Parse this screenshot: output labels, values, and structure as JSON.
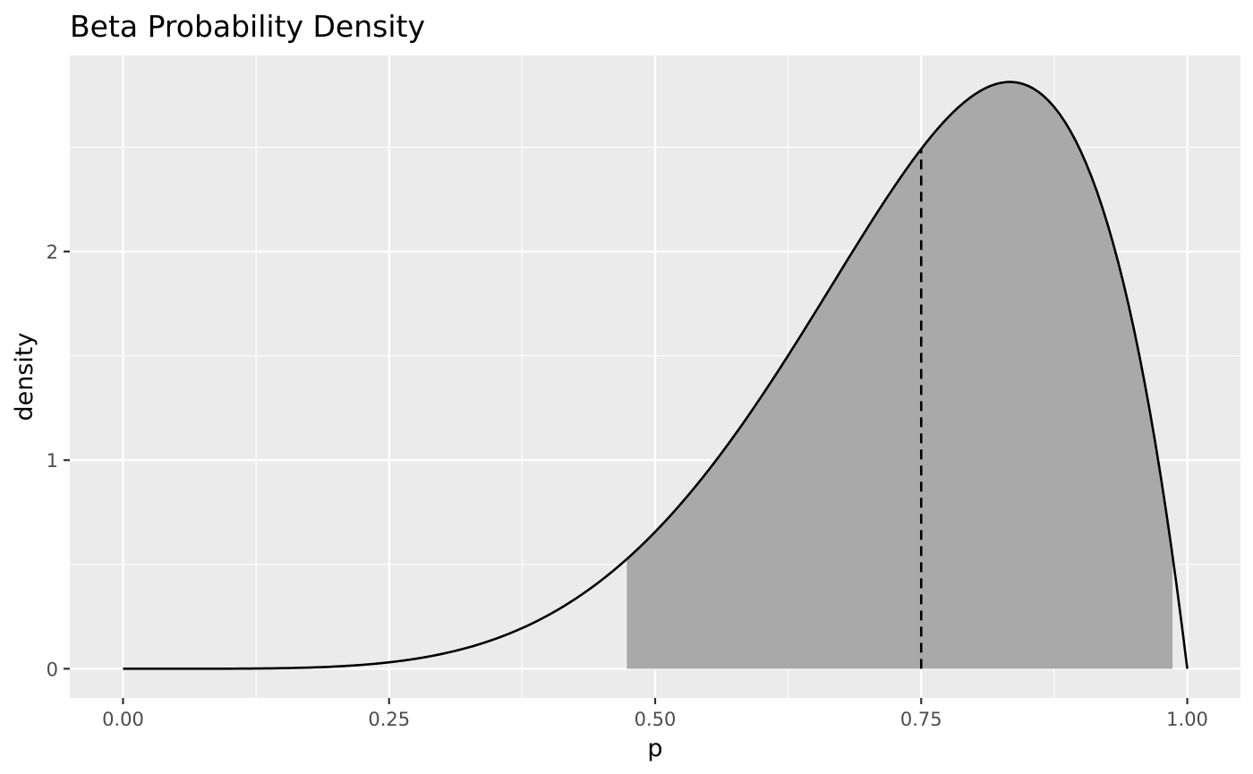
{
  "chart_data": {
    "type": "area",
    "title": "Beta Probability Density",
    "xlabel": "p",
    "ylabel": "density",
    "xlim": [
      -0.05,
      1.05
    ],
    "ylim": [
      -0.14,
      2.94
    ],
    "x_ticks": [
      {
        "value": 0,
        "label": "0.00"
      },
      {
        "value": 0.25,
        "label": "0.25"
      },
      {
        "value": 0.5,
        "label": "0.50"
      },
      {
        "value": 0.75,
        "label": "0.75"
      },
      {
        "value": 1,
        "label": "1.00"
      }
    ],
    "y_ticks": [
      {
        "value": 0,
        "label": "0"
      },
      {
        "value": 1,
        "label": "1"
      },
      {
        "value": 2,
        "label": "2"
      }
    ],
    "x_minor_ticks": [
      0.125,
      0.375,
      0.625,
      0.875
    ],
    "y_minor_ticks": [
      0.5,
      1.5,
      2.5
    ],
    "grid": true,
    "series": [
      {
        "kind": "density-curve",
        "distribution": "beta",
        "alpha": 6,
        "beta": 2,
        "x_range": [
          0,
          1
        ],
        "samples": 201,
        "color": "#000000"
      }
    ],
    "shaded_interval": {
      "x": [
        0.4734,
        0.9861
      ],
      "color": "#a9a9a9"
    },
    "vline": {
      "x": 0.75,
      "style": "dashed",
      "color": "#000000"
    },
    "colors": {
      "panel_background": "#ebebeb",
      "grid": "#ffffff",
      "tick_label": "#4d4d4d"
    }
  }
}
